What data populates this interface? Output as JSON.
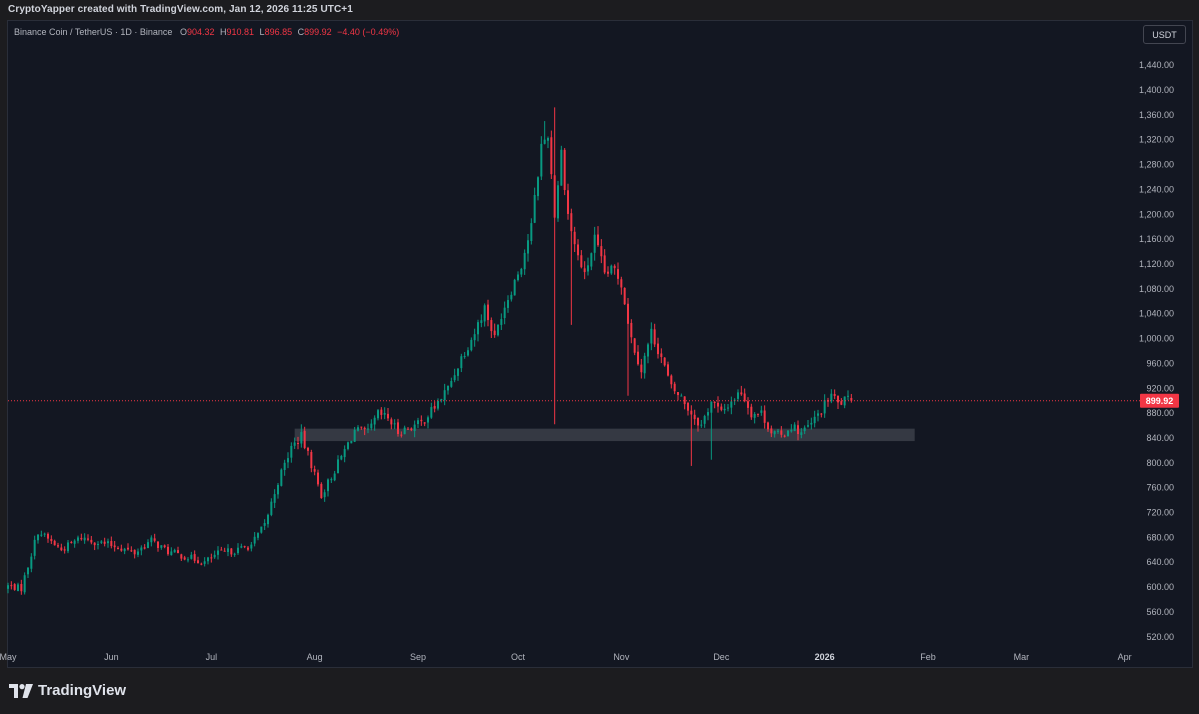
{
  "header": {
    "caption": "CryptoYapper created with TradingView.com, Jan 12, 2026 11:25 UTC+1"
  },
  "legend": {
    "symbol": "Binance Coin / TetherUS · 1D · Binance",
    "open_label": "O",
    "open": "904.32",
    "high_label": "H",
    "high": "910.81",
    "low_label": "L",
    "low": "896.85",
    "close_label": "C",
    "close": "899.92",
    "change": "−4.40 (−0.49%)"
  },
  "currency": "USDT",
  "footer": {
    "brand": "TradingView"
  },
  "colors": {
    "background": "#131722",
    "up": "#089981",
    "down": "#f23645",
    "zone": "#3a3d47",
    "text": "#b2b5be"
  },
  "chart_data": {
    "type": "candlestick",
    "title": "Binance Coin / TetherUS · 1D · Binance",
    "x_labels": [
      "May",
      "Jun",
      "Jul",
      "Aug",
      "Sep",
      "Oct",
      "Nov",
      "Dec",
      "2026",
      "Feb",
      "Mar",
      "Apr"
    ],
    "x_label_days": [
      0,
      31,
      61,
      92,
      123,
      153,
      184,
      214,
      245,
      276,
      304,
      335
    ],
    "x_range_days": [
      0,
      339
    ],
    "y_ticks": [
      "520.00",
      "560.00",
      "600.00",
      "640.00",
      "680.00",
      "720.00",
      "760.00",
      "800.00",
      "840.00",
      "880.00",
      "920.00",
      "960.00",
      "1,000.00",
      "1,040.00",
      "1,080.00",
      "1,120.00",
      "1,160.00",
      "1,200.00",
      "1,240.00",
      "1,280.00",
      "1,320.00",
      "1,360.00",
      "1,400.00",
      "1,440.00"
    ],
    "y_tick_values": [
      520,
      560,
      600,
      640,
      680,
      720,
      760,
      800,
      840,
      880,
      920,
      960,
      1000,
      1040,
      1080,
      1120,
      1160,
      1200,
      1240,
      1280,
      1320,
      1360,
      1400,
      1440
    ],
    "ylim": [
      502,
      1474
    ],
    "last_price": 899.92,
    "last_price_label": "899.92",
    "support_zone": {
      "low": 835,
      "high": 855,
      "from_day": 86,
      "to_day": 272
    },
    "close_anchors": [
      [
        0,
        602
      ],
      [
        4,
        598
      ],
      [
        9,
        690
      ],
      [
        16,
        660
      ],
      [
        22,
        680
      ],
      [
        27,
        672
      ],
      [
        33,
        665
      ],
      [
        38,
        655
      ],
      [
        43,
        675
      ],
      [
        48,
        657
      ],
      [
        54,
        648
      ],
      [
        59,
        640
      ],
      [
        63,
        654
      ],
      [
        69,
        660
      ],
      [
        73,
        668
      ],
      [
        77,
        700
      ],
      [
        81,
        770
      ],
      [
        85,
        825
      ],
      [
        88,
        842
      ],
      [
        91,
        798
      ],
      [
        94,
        748
      ],
      [
        97,
        778
      ],
      [
        101,
        820
      ],
      [
        104,
        852
      ],
      [
        108,
        848
      ],
      [
        111,
        878
      ],
      [
        114,
        872
      ],
      [
        117,
        850
      ],
      [
        120,
        856
      ],
      [
        124,
        864
      ],
      [
        128,
        890
      ],
      [
        132,
        920
      ],
      [
        136,
        970
      ],
      [
        140,
        1010
      ],
      [
        143,
        1050
      ],
      [
        146,
        1000
      ],
      [
        148,
        1040
      ],
      [
        151,
        1080
      ],
      [
        154,
        1120
      ],
      [
        157,
        1180
      ],
      [
        160,
        1310
      ],
      [
        162,
        1330
      ],
      [
        164,
        1200
      ],
      [
        166,
        1300
      ],
      [
        168,
        1200
      ],
      [
        170,
        1150
      ],
      [
        173,
        1100
      ],
      [
        176,
        1160
      ],
      [
        179,
        1105
      ],
      [
        182,
        1110
      ],
      [
        184,
        1090
      ],
      [
        187,
        1000
      ],
      [
        190,
        950
      ],
      [
        193,
        1010
      ],
      [
        196,
        970
      ],
      [
        199,
        920
      ],
      [
        202,
        905
      ],
      [
        205,
        880
      ],
      [
        208,
        860
      ],
      [
        211,
        900
      ],
      [
        214,
        880
      ],
      [
        217,
        900
      ],
      [
        220,
        915
      ],
      [
        223,
        880
      ],
      [
        226,
        880
      ],
      [
        229,
        850
      ],
      [
        232,
        842
      ],
      [
        235,
        860
      ],
      [
        238,
        848
      ],
      [
        241,
        862
      ],
      [
        244,
        885
      ],
      [
        247,
        910
      ],
      [
        249,
        895
      ],
      [
        251,
        900
      ],
      [
        253,
        900
      ]
    ]
  }
}
